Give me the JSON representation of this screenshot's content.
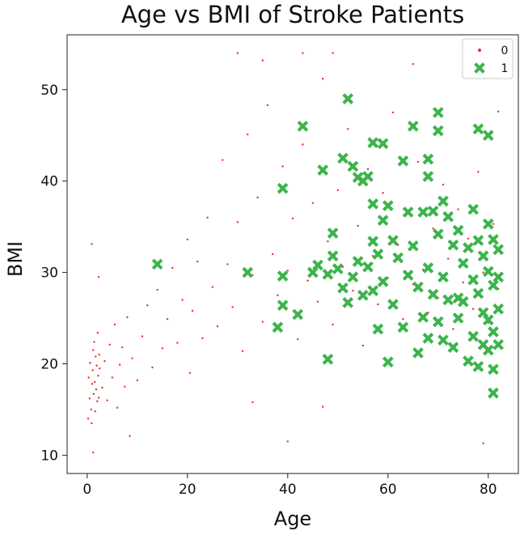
{
  "chart_data": {
    "type": "scatter",
    "title": "Age vs BMI of Stroke Patients",
    "xlabel": "Age",
    "ylabel": "BMI",
    "xlim": [
      -4,
      86
    ],
    "ylim": [
      8,
      56
    ],
    "xticks": [
      0,
      20,
      40,
      60,
      80
    ],
    "yticks": [
      10,
      20,
      30,
      40,
      50
    ],
    "legend_position": "top-right",
    "series": [
      {
        "name": "0",
        "marker": "dot",
        "color": "#e8302a",
        "points": [
          [
            0.2,
            14.0
          ],
          [
            0.3,
            18.5
          ],
          [
            0.5,
            16.2
          ],
          [
            0.6,
            20.1
          ],
          [
            0.8,
            15.0
          ],
          [
            0.9,
            13.5
          ],
          [
            1.0,
            17.8
          ],
          [
            1.1,
            19.3
          ],
          [
            1.2,
            21.5
          ],
          [
            1.3,
            16.7
          ],
          [
            1.4,
            22.4
          ],
          [
            1.5,
            18.0
          ],
          [
            1.6,
            14.8
          ],
          [
            1.7,
            20.8
          ],
          [
            1.8,
            17.2
          ],
          [
            1.9,
            19.8
          ],
          [
            2.0,
            15.9
          ],
          [
            2.1,
            23.4
          ],
          [
            2.2,
            18.7
          ],
          [
            2.3,
            16.3
          ],
          [
            2.4,
            21.0
          ],
          [
            2.5,
            19.5
          ],
          [
            1.2,
            10.3
          ],
          [
            0.9,
            33.1
          ],
          [
            2.3,
            29.5
          ],
          [
            3.0,
            17.4
          ],
          [
            3.5,
            20.3
          ],
          [
            4.0,
            16.0
          ],
          [
            4.5,
            22.1
          ],
          [
            5.0,
            18.5
          ],
          [
            5.5,
            24.3
          ],
          [
            6.0,
            15.2
          ],
          [
            6.5,
            19.9
          ],
          [
            7.0,
            21.8
          ],
          [
            7.5,
            17.5
          ],
          [
            8.0,
            25.1
          ],
          [
            8.5,
            12.1
          ],
          [
            9.0,
            20.6
          ],
          [
            10.0,
            18.2
          ],
          [
            11.0,
            23.0
          ],
          [
            12.0,
            26.4
          ],
          [
            13.0,
            19.6
          ],
          [
            14.0,
            28.1
          ],
          [
            15.0,
            21.7
          ],
          [
            16.0,
            24.9
          ],
          [
            17.0,
            30.5
          ],
          [
            18.0,
            22.3
          ],
          [
            19.0,
            27.0
          ],
          [
            20.0,
            33.6
          ],
          [
            20.5,
            19.0
          ],
          [
            21.0,
            25.8
          ],
          [
            22.0,
            31.2
          ],
          [
            23.0,
            22.8
          ],
          [
            24.0,
            36.0
          ],
          [
            25.0,
            28.4
          ],
          [
            26.0,
            24.1
          ],
          [
            27.0,
            42.3
          ],
          [
            28.0,
            30.9
          ],
          [
            29.0,
            26.2
          ],
          [
            30.0,
            35.5
          ],
          [
            31.0,
            21.4
          ],
          [
            32.0,
            45.1
          ],
          [
            33.0,
            29.7
          ],
          [
            34.0,
            38.2
          ],
          [
            35.0,
            24.6
          ],
          [
            36.0,
            48.3
          ],
          [
            37.0,
            32.0
          ],
          [
            38.0,
            27.5
          ],
          [
            39.0,
            41.6
          ],
          [
            40.0,
            30.2
          ],
          [
            41.0,
            35.9
          ],
          [
            42.0,
            22.7
          ],
          [
            43.0,
            44.0
          ],
          [
            44.0,
            29.1
          ],
          [
            45.0,
            37.6
          ],
          [
            46.0,
            26.8
          ],
          [
            47.0,
            51.2
          ],
          [
            48.0,
            33.4
          ],
          [
            49.0,
            24.3
          ],
          [
            50.0,
            39.0
          ],
          [
            51.0,
            30.6
          ],
          [
            52.0,
            45.7
          ],
          [
            53.0,
            28.0
          ],
          [
            54.0,
            35.1
          ],
          [
            55.0,
            22.0
          ],
          [
            56.0,
            41.3
          ],
          [
            57.0,
            31.8
          ],
          [
            58.0,
            26.5
          ],
          [
            59.0,
            38.7
          ],
          [
            60.0,
            29.4
          ],
          [
            61.0,
            47.5
          ],
          [
            62.0,
            33.0
          ],
          [
            63.0,
            24.9
          ],
          [
            64.0,
            36.4
          ],
          [
            65.0,
            28.7
          ],
          [
            66.0,
            42.1
          ],
          [
            67.0,
            30.3
          ],
          [
            68.0,
            25.6
          ],
          [
            69.0,
            34.8
          ],
          [
            70.0,
            27.2
          ],
          [
            71.0,
            39.6
          ],
          [
            72.0,
            31.5
          ],
          [
            73.0,
            23.8
          ],
          [
            74.0,
            36.9
          ],
          [
            75.0,
            28.9
          ],
          [
            76.0,
            33.7
          ],
          [
            77.0,
            26.0
          ],
          [
            78.0,
            41.0
          ],
          [
            79.0,
            30.0
          ],
          [
            80.0,
            24.5
          ],
          [
            81.0,
            35.3
          ],
          [
            82.0,
            28.2
          ],
          [
            30.0,
            54.0
          ],
          [
            35.0,
            53.2
          ],
          [
            43.0,
            54.0
          ],
          [
            49.0,
            54.0
          ],
          [
            65.0,
            52.8
          ],
          [
            82.0,
            47.6
          ],
          [
            40.0,
            11.5
          ],
          [
            79.0,
            11.3
          ],
          [
            47.0,
            15.3
          ],
          [
            33.0,
            15.8
          ]
        ]
      },
      {
        "name": "1",
        "marker": "x",
        "color": "#3cb44b",
        "points": [
          [
            14,
            30.9
          ],
          [
            32,
            30.0
          ],
          [
            38,
            24.0
          ],
          [
            39,
            29.6
          ],
          [
            39,
            39.2
          ],
          [
            39,
            26.4
          ],
          [
            42,
            25.4
          ],
          [
            43,
            46.0
          ],
          [
            45,
            30.0
          ],
          [
            46,
            30.8
          ],
          [
            47,
            41.2
          ],
          [
            48,
            20.5
          ],
          [
            48,
            29.8
          ],
          [
            49,
            34.3
          ],
          [
            49,
            31.8
          ],
          [
            50,
            30.4
          ],
          [
            51,
            42.5
          ],
          [
            51,
            28.3
          ],
          [
            52,
            49.0
          ],
          [
            52,
            26.7
          ],
          [
            53,
            41.6
          ],
          [
            53,
            29.5
          ],
          [
            54,
            40.4
          ],
          [
            54,
            31.2
          ],
          [
            55,
            40.0
          ],
          [
            55,
            27.5
          ],
          [
            56,
            40.5
          ],
          [
            56,
            30.6
          ],
          [
            57,
            44.2
          ],
          [
            57,
            37.5
          ],
          [
            57,
            33.4
          ],
          [
            57,
            28.0
          ],
          [
            58,
            32.0
          ],
          [
            58,
            23.8
          ],
          [
            59,
            44.1
          ],
          [
            59,
            35.7
          ],
          [
            59,
            29.0
          ],
          [
            60,
            20.2
          ],
          [
            60,
            37.3
          ],
          [
            61,
            33.5
          ],
          [
            61,
            26.5
          ],
          [
            62,
            31.6
          ],
          [
            63,
            42.2
          ],
          [
            63,
            24.0
          ],
          [
            64,
            36.6
          ],
          [
            64,
            29.7
          ],
          [
            65,
            46.0
          ],
          [
            65,
            32.9
          ],
          [
            66,
            21.2
          ],
          [
            66,
            28.4
          ],
          [
            67,
            36.6
          ],
          [
            67,
            25.1
          ],
          [
            68,
            42.4
          ],
          [
            68,
            40.5
          ],
          [
            68,
            30.5
          ],
          [
            68,
            22.8
          ],
          [
            69,
            36.7
          ],
          [
            69,
            27.6
          ],
          [
            70,
            47.5
          ],
          [
            70,
            45.5
          ],
          [
            70,
            34.2
          ],
          [
            70,
            24.6
          ],
          [
            71,
            37.8
          ],
          [
            71,
            29.5
          ],
          [
            71,
            22.6
          ],
          [
            72,
            36.1
          ],
          [
            72,
            27.0
          ],
          [
            73,
            33.0
          ],
          [
            73,
            21.8
          ],
          [
            74,
            34.6
          ],
          [
            74,
            27.2
          ],
          [
            74,
            25.0
          ],
          [
            75,
            31.0
          ],
          [
            75,
            26.8
          ],
          [
            76,
            32.7
          ],
          [
            76,
            20.3
          ],
          [
            77,
            36.9
          ],
          [
            77,
            29.2
          ],
          [
            77,
            23.0
          ],
          [
            78,
            45.7
          ],
          [
            78,
            33.5
          ],
          [
            78,
            27.7
          ],
          [
            78,
            19.7
          ],
          [
            79,
            31.8
          ],
          [
            79,
            25.6
          ],
          [
            79,
            22.1
          ],
          [
            80,
            45.0
          ],
          [
            80,
            35.3
          ],
          [
            80,
            30.1
          ],
          [
            80,
            24.8
          ],
          [
            80,
            21.5
          ],
          [
            81,
            33.6
          ],
          [
            81,
            28.6
          ],
          [
            81,
            23.5
          ],
          [
            81,
            19.4
          ],
          [
            81,
            16.8
          ],
          [
            82,
            32.5
          ],
          [
            82,
            29.5
          ],
          [
            82,
            26.0
          ],
          [
            82,
            22.1
          ]
        ]
      }
    ]
  }
}
